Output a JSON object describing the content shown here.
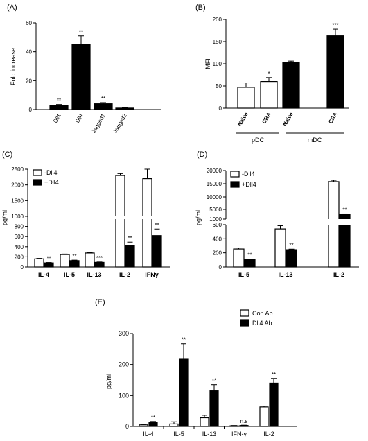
{
  "chart_data": [
    {
      "panel": "(A)",
      "type": "bar",
      "ylabel": "Fold increase",
      "categories": [
        "Dll1",
        "Dll4",
        "Jagged1",
        "Jagged2"
      ],
      "values": [
        3,
        45,
        4,
        1
      ],
      "errors": [
        0.5,
        6,
        0.8,
        0.3
      ],
      "significance": [
        "**",
        "**",
        "**",
        ""
      ],
      "yticks": [
        "0",
        "20",
        "40",
        "60"
      ],
      "ylim": [
        0,
        60
      ],
      "fill": "#000000"
    },
    {
      "panel": "(B)",
      "type": "bar",
      "ylabel": "MFI",
      "categories": [
        "Naive",
        "CRA",
        "Naive",
        "CRA"
      ],
      "groups": [
        "pDC",
        "mDC"
      ],
      "values": [
        47,
        60,
        103,
        163
      ],
      "errors": [
        10,
        9,
        3,
        15
      ],
      "fills": [
        "#ffffff",
        "#ffffff",
        "#000000",
        "#000000"
      ],
      "significance": [
        "",
        "*",
        "",
        "***"
      ],
      "yticks": [
        "0",
        "50",
        "100",
        "150",
        "200"
      ],
      "ylim": [
        0,
        200
      ]
    },
    {
      "panel": "(C)",
      "type": "bar",
      "ylabel": "pg/ml",
      "categories": [
        "IL-4",
        "IL-5",
        "IL-13",
        "IL-2",
        "IFNγ"
      ],
      "series": [
        {
          "name": "-Dll4",
          "values": [
            160,
            245,
            275,
            2300,
            2200
          ],
          "errors": [
            10,
            10,
            8,
            60,
            300
          ]
        },
        {
          "name": "+Dll4",
          "values": [
            80,
            125,
            90,
            420,
            620
          ],
          "errors": [
            8,
            10,
            8,
            70,
            130
          ]
        }
      ],
      "significance": [
        "**",
        "**",
        "***",
        "**",
        "**"
      ],
      "yticks_lower": [
        "0",
        "200",
        "400",
        "600",
        "800",
        "1000"
      ],
      "yticks_upper": [
        "1000",
        "1500",
        "2000",
        "2500"
      ],
      "broken_axis": [
        1000,
        1000
      ]
    },
    {
      "panel": "(D)",
      "type": "bar",
      "ylabel": "pg/ml",
      "categories": [
        "IL-5",
        "IL-13",
        "IL-2"
      ],
      "series": [
        {
          "name": "-Dll4",
          "values": [
            255,
            540,
            15800
          ],
          "errors": [
            15,
            45,
            500
          ]
        },
        {
          "name": "+Dll4",
          "values": [
            105,
            245,
            3000
          ],
          "errors": [
            8,
            8,
            150
          ]
        }
      ],
      "significance": [
        "**",
        "**",
        "**"
      ],
      "yticks_lower": [
        "0",
        "200",
        "400",
        "600"
      ],
      "yticks_upper": [
        "1000",
        "5000",
        "10000",
        "15000",
        "20000"
      ]
    },
    {
      "panel": "(E)",
      "type": "bar",
      "ylabel": "pg/ml",
      "categories": [
        "IL-4",
        "IL-5",
        "IL-13",
        "IFN-γ",
        "IL-2"
      ],
      "series": [
        {
          "name": "Con Ab",
          "values": [
            5,
            8,
            28,
            2,
            63
          ],
          "errors": [
            2,
            7,
            8,
            1,
            3
          ],
          "fill": "#ffffff"
        },
        {
          "name": "Dll4 Ab",
          "values": [
            13,
            217,
            115,
            3,
            140
          ],
          "errors": [
            3,
            50,
            20,
            1,
            15
          ],
          "fill": "#000000"
        }
      ],
      "significance": [
        "**",
        "**",
        "**",
        "n.s",
        "**"
      ],
      "yticks": [
        "0",
        "100",
        "200",
        "300"
      ],
      "ylim": [
        0,
        300
      ]
    }
  ]
}
